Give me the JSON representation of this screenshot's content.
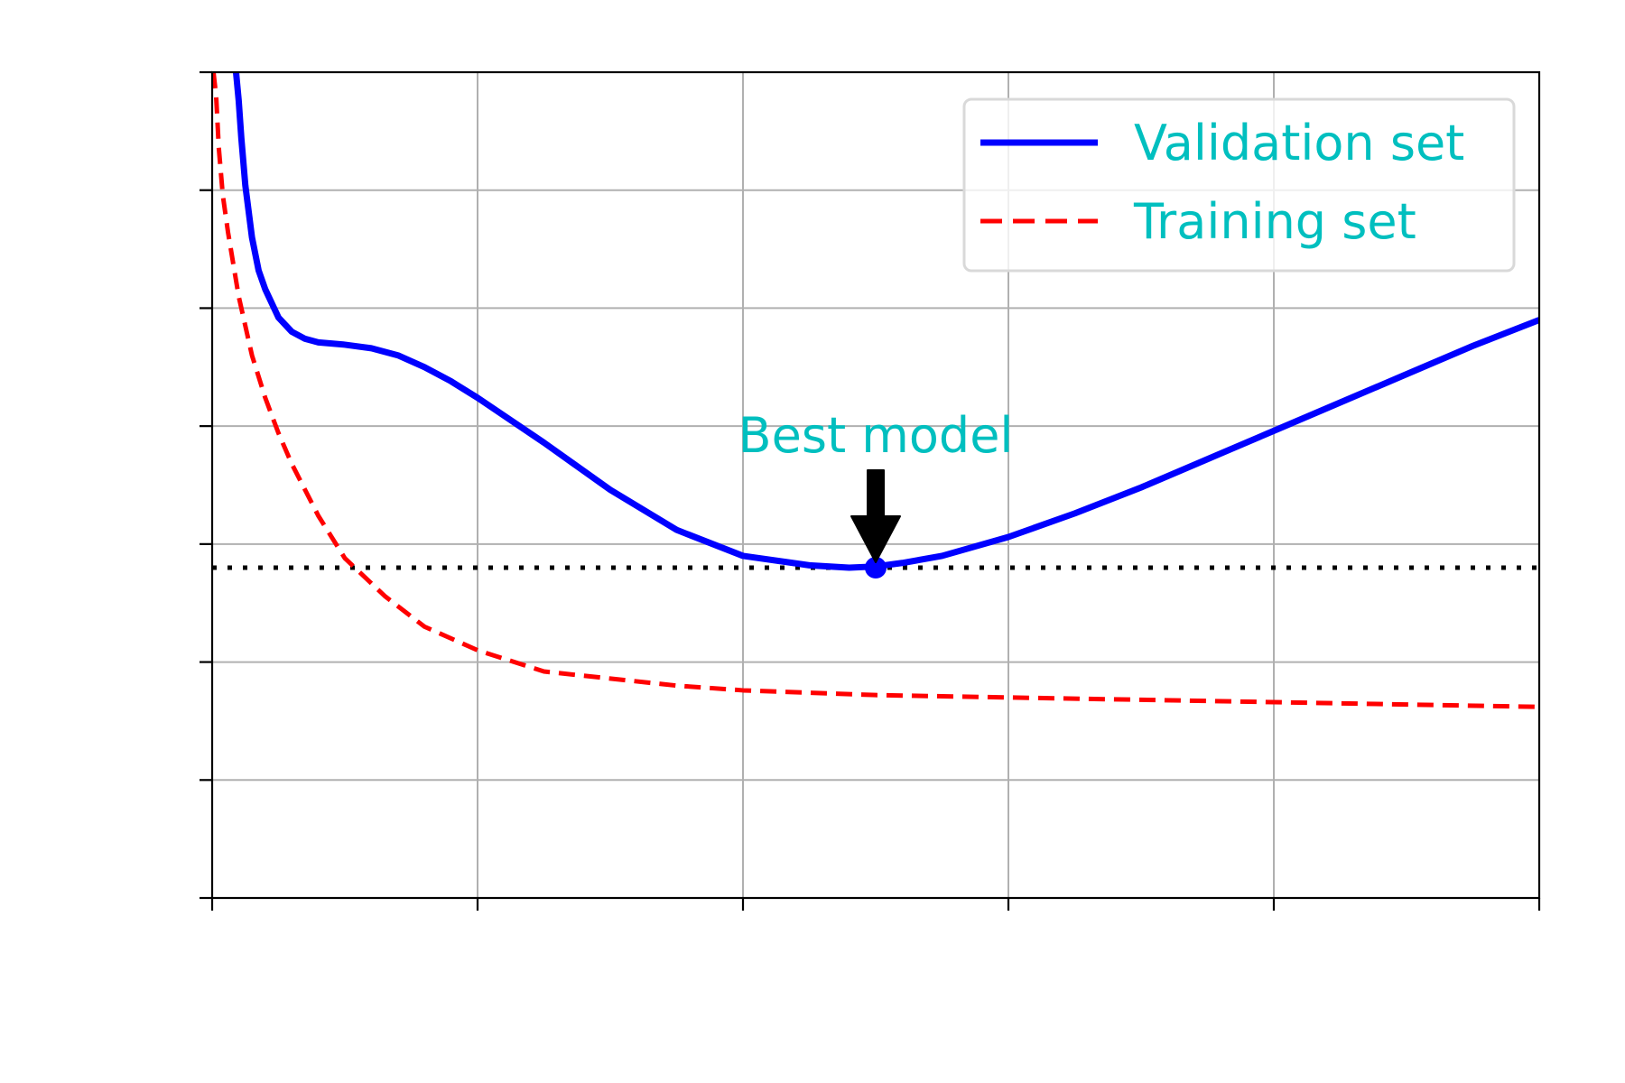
{
  "chart_data": {
    "type": "line",
    "title": "",
    "xlabel": "",
    "ylabel": "",
    "xlim": [
      0,
      1000
    ],
    "ylim": [
      0,
      3.5
    ],
    "xticks": [
      0,
      200,
      400,
      600,
      800,
      1000
    ],
    "yticks": [
      0,
      0.5,
      1.0,
      1.5,
      2.0,
      2.5,
      3.0,
      3.5
    ],
    "grid": true,
    "legend_position": "upper right",
    "series": [
      {
        "name": "Validation set",
        "color": "#0000ff",
        "style": "solid",
        "x": [
          18,
          20,
          22,
          25,
          30,
          35,
          40,
          50,
          60,
          70,
          80,
          90,
          100,
          120,
          140,
          160,
          180,
          200,
          250,
          300,
          350,
          400,
          450,
          480,
          500,
          520,
          550,
          600,
          650,
          700,
          750,
          800,
          850,
          900,
          950,
          1000
        ],
        "y": [
          3.5,
          3.38,
          3.22,
          3.02,
          2.8,
          2.66,
          2.58,
          2.46,
          2.4,
          2.37,
          2.355,
          2.35,
          2.345,
          2.33,
          2.3,
          2.25,
          2.19,
          2.12,
          1.93,
          1.73,
          1.56,
          1.45,
          1.41,
          1.4,
          1.405,
          1.42,
          1.45,
          1.53,
          1.63,
          1.74,
          1.86,
          1.98,
          2.1,
          2.22,
          2.34,
          2.45
        ]
      },
      {
        "name": "Training set",
        "color": "#ff0000",
        "style": "dashed",
        "x": [
          1,
          3,
          5,
          8,
          12,
          20,
          30,
          40,
          50,
          60,
          80,
          100,
          130,
          160,
          200,
          250,
          300,
          350,
          400,
          450,
          500,
          600,
          700,
          800,
          900,
          1000
        ],
        "y": [
          3.5,
          3.4,
          3.18,
          2.98,
          2.82,
          2.55,
          2.3,
          2.12,
          1.97,
          1.84,
          1.62,
          1.44,
          1.28,
          1.15,
          1.05,
          0.96,
          0.93,
          0.9,
          0.88,
          0.87,
          0.86,
          0.85,
          0.84,
          0.83,
          0.82,
          0.81
        ]
      }
    ],
    "reference_line": {
      "y": 1.4,
      "color": "#000000",
      "style": "dotted"
    },
    "best_point": {
      "x": 500,
      "y": 1.4,
      "color": "#0000ff"
    },
    "annotation": {
      "text": "Best model",
      "x": 500,
      "y": 1.4,
      "color": "#00bfbf"
    }
  }
}
